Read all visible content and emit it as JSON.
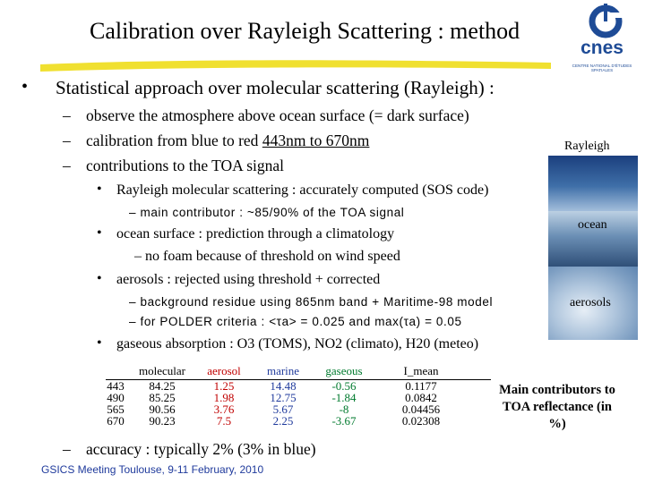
{
  "header": {
    "title": "Calibration over Rayleigh Scattering : method",
    "logo_text": "cnes",
    "logo_subtext": "CENTRE NATIONAL D'ÉTUDES SPATIALES",
    "accent_color": "#f0e030"
  },
  "bullets": {
    "main": "Statistical approach over molecular scattering (Rayleigh) :",
    "dash1": "observe the atmosphere above ocean surface (= dark surface)",
    "dash2_prefix": "calibration from blue to red ",
    "dash2_underlined": "443nm to 670nm",
    "dash3": "contributions to the TOA signal",
    "sub1": "Rayleigh molecular scattering : accurately computed (SOS code)",
    "sub1_dash": "main contributor : ~85/90% of the TOA signal",
    "sub2": "ocean surface : prediction through a climatology",
    "sub2_dash": "no foam because of threshold on wind speed",
    "sub3": "aerosols : rejected using threshold + corrected",
    "sub3_dash1": "background residue using 865nm band + Maritime-98 model",
    "sub3_dash2": "for POLDER criteria : <τa> = 0.025 and max(τa) = 0.05",
    "sub4": "gaseous absorption : O3 (TOMS), NO2 (climato), H20 (meteo)",
    "bottom_dash": "accuracy : typically 2% (3% in blue)"
  },
  "side_images": {
    "rayleigh_label": "Rayleigh",
    "ocean_label": "ocean",
    "aerosols_label": "aerosols"
  },
  "table": {
    "headers": {
      "band": "",
      "molecular": "molecular",
      "aerosol": "aerosol",
      "marine": "marine",
      "gaseous": "gaseous",
      "imean": "I_mean"
    },
    "rows": [
      {
        "band": "443",
        "molecular": "84.25",
        "aerosol": "1.25",
        "marine": "14.48",
        "gaseous": "-0.56",
        "imean": "0.1177"
      },
      {
        "band": "490",
        "molecular": "85.25",
        "aerosol": "1.98",
        "marine": "12.75",
        "gaseous": "-1.84",
        "imean": "0.0842"
      },
      {
        "band": "565",
        "molecular": "90.56",
        "aerosol": "3.76",
        "marine": "5.67",
        "gaseous": "-8",
        "imean": "0.04456"
      },
      {
        "band": "670",
        "molecular": "90.23",
        "aerosol": "7.5",
        "marine": "2.25",
        "gaseous": "-3.67",
        "imean": "0.02308"
      }
    ],
    "note": "Main contributors to TOA reflectance (in %)"
  },
  "footer": "GSICS Meeting Toulouse, 9-11 February, 2010"
}
